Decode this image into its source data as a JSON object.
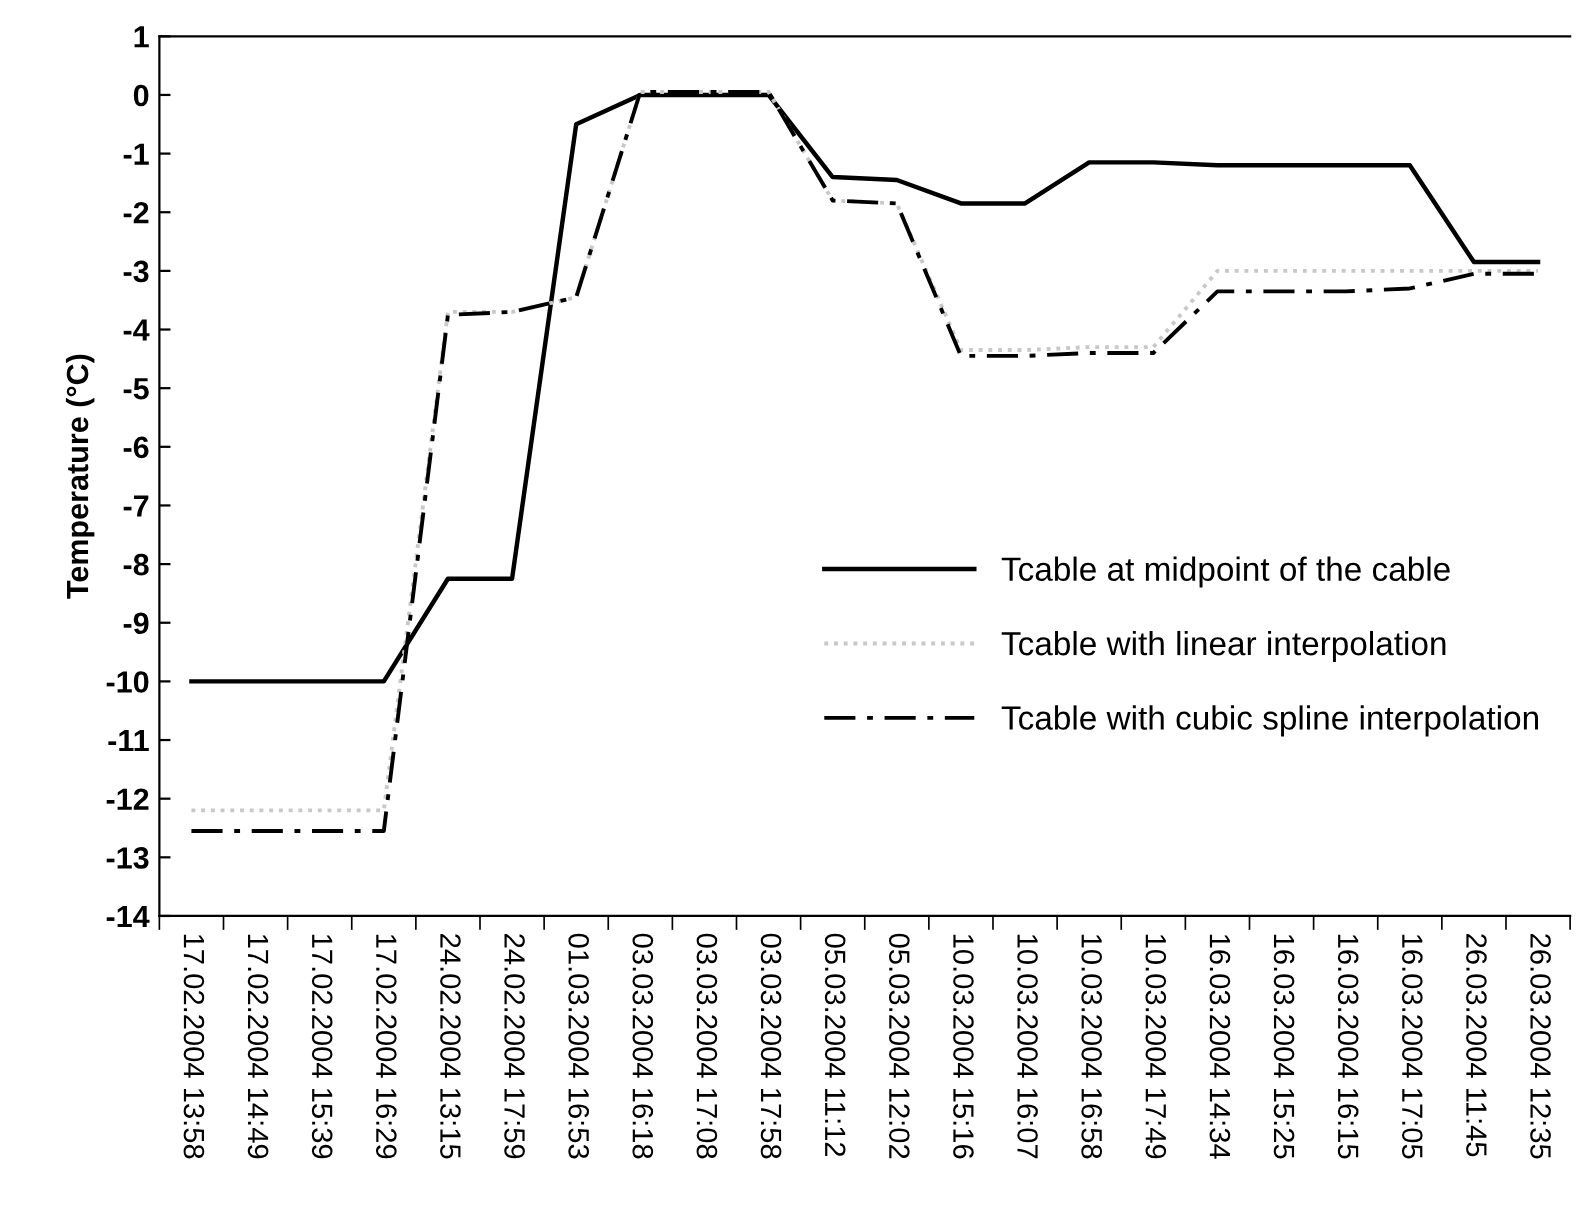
{
  "chart_data": {
    "type": "line",
    "ylabel": "Temperature (°C)",
    "categories": [
      "17.02.2004 13:58",
      "17.02.2004 14:49",
      "17.02.2004 15:39",
      "17.02.2004 16:29",
      "24.02.2004 13:15",
      "24.02.2004 17:59",
      "01.03.2004 16:53",
      "03.03.2004 16:18",
      "03.03.2004 17:08",
      "03.03.2004 17:58",
      "05.03.2004 11:12",
      "05.03.2004 12:02",
      "10.03.2004 15:16",
      "10.03.2004 16:07",
      "10.03.2004 16:58",
      "10.03.2004 17:49",
      "16.03.2004 14:34",
      "16.03.2004 15:25",
      "16.03.2004 16:15",
      "16.03.2004 17:05",
      "26.03.2004 11:45",
      "26.03.2004 12:35"
    ],
    "series": [
      {
        "name": "Tcable at midpoint of the cable",
        "color": "#000000",
        "line_style": "solid",
        "values": [
          -10,
          -10,
          -10,
          -10,
          -8.25,
          -8.25,
          -0.5,
          0,
          0,
          0,
          -1.4,
          -1.45,
          -1.85,
          -1.85,
          -1.15,
          -1.15,
          -1.2,
          -1.2,
          -1.2,
          -1.2,
          -2.85,
          -2.85
        ]
      },
      {
        "name": "Tcable with linear interpolation",
        "color": "#c8c8c8",
        "line_style": "dotted",
        "values": [
          -12.2,
          -12.2,
          -12.2,
          -12.2,
          -3.7,
          -3.7,
          -3.45,
          0.05,
          0.05,
          0.05,
          -1.8,
          -1.85,
          -4.35,
          -4.35,
          -4.3,
          -4.3,
          -3.0,
          -3.0,
          -3.0,
          -3.0,
          -3.0,
          -3.0
        ]
      },
      {
        "name": "Tcable with cubic spline interpolation",
        "color": "#000000",
        "line_style": "dashdot",
        "values": [
          -12.55,
          -12.55,
          -12.55,
          -12.55,
          -3.75,
          -3.7,
          -3.45,
          0.05,
          0.05,
          0.05,
          -1.8,
          -1.85,
          -4.45,
          -4.45,
          -4.4,
          -4.4,
          -3.35,
          -3.35,
          -3.35,
          -3.3,
          -3.05,
          -3.05
        ]
      }
    ],
    "ylim": [
      -14,
      1
    ],
    "yticks": [
      -14,
      -13,
      -12,
      -11,
      -10,
      -9,
      -8,
      -7,
      -6,
      -5,
      -4,
      -3,
      -2,
      -1,
      0,
      1
    ],
    "grid": false,
    "legend": "lower right",
    "marker": "none"
  }
}
